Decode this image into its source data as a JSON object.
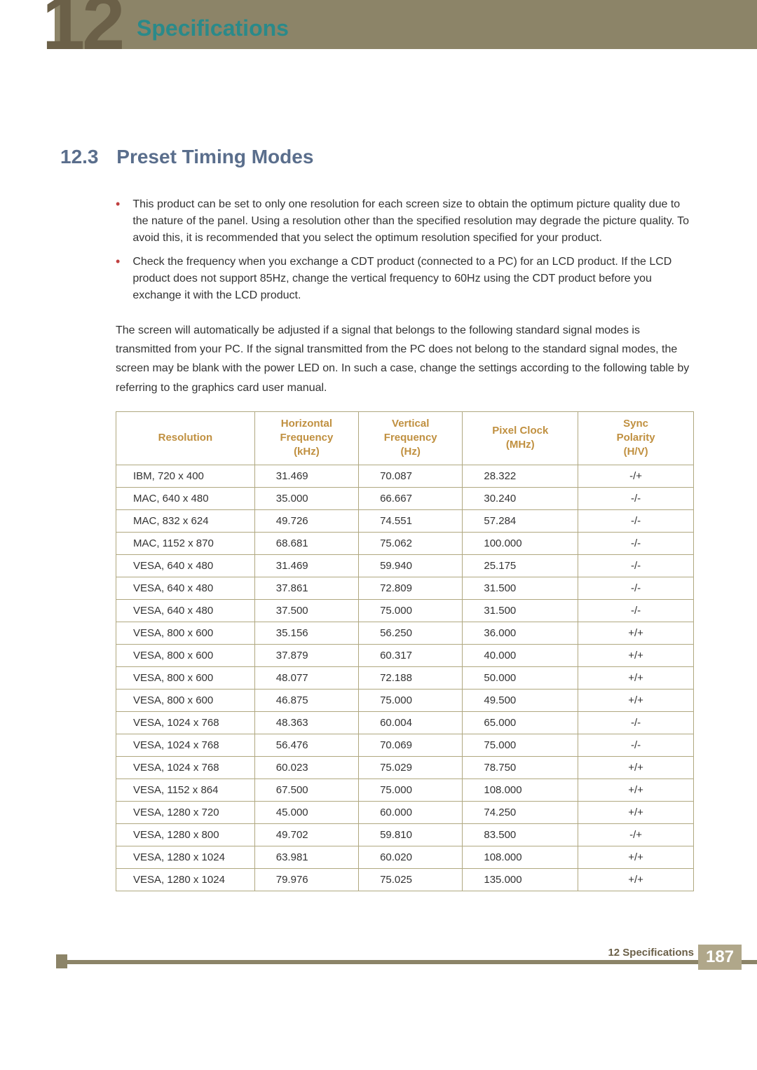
{
  "banner": {
    "chapter_number": "12",
    "chapter_title": "Specifications"
  },
  "section": {
    "number": "12.3",
    "title": "Preset Timing Modes"
  },
  "bullets": [
    "This product can be set to only one resolution for each screen size to obtain the optimum picture quality due to the nature of the panel. Using a resolution other than the specified resolution may degrade the picture quality. To avoid this, it is recommended that you select the optimum resolution specified for your product.",
    "Check the frequency when you exchange a CDT product (connected to a PC) for an LCD product. If the LCD product does not support 85Hz, change the vertical frequency to 60Hz using the CDT product before you exchange it with the LCD product."
  ],
  "intro": "The screen will automatically be adjusted if a signal that belongs to the following standard signal modes is transmitted from your PC. If the signal transmitted from the PC does not belong to the standard signal modes, the screen may be blank with the power LED on. In such a case, change the settings according to the following table by referring to the graphics card user manual.",
  "table": {
    "headers": {
      "resolution": "Resolution",
      "hfreq_l1": "Horizontal",
      "hfreq_l2": "Frequency",
      "hfreq_l3": "(kHz)",
      "vfreq_l1": "Vertical",
      "vfreq_l2": "Frequency",
      "vfreq_l3": "(Hz)",
      "pclk_l1": "Pixel Clock",
      "pclk_l2": "(MHz)",
      "pol_l1": "Sync",
      "pol_l2": "Polarity",
      "pol_l3": "(H/V)"
    },
    "rows": [
      {
        "res": "IBM, 720 x 400",
        "hf": "31.469",
        "vf": "70.087",
        "pc": "28.322",
        "pol": "-/+"
      },
      {
        "res": "MAC, 640 x 480",
        "hf": "35.000",
        "vf": "66.667",
        "pc": "30.240",
        "pol": "-/-"
      },
      {
        "res": "MAC, 832 x 624",
        "hf": "49.726",
        "vf": "74.551",
        "pc": "57.284",
        "pol": "-/-"
      },
      {
        "res": "MAC, 1152 x 870",
        "hf": "68.681",
        "vf": "75.062",
        "pc": "100.000",
        "pol": "-/-"
      },
      {
        "res": "VESA, 640 x 480",
        "hf": "31.469",
        "vf": "59.940",
        "pc": "25.175",
        "pol": "-/-"
      },
      {
        "res": "VESA, 640 x 480",
        "hf": "37.861",
        "vf": "72.809",
        "pc": "31.500",
        "pol": "-/-"
      },
      {
        "res": "VESA, 640 x 480",
        "hf": "37.500",
        "vf": "75.000",
        "pc": "31.500",
        "pol": "-/-"
      },
      {
        "res": "VESA, 800 x 600",
        "hf": "35.156",
        "vf": "56.250",
        "pc": "36.000",
        "pol": "+/+"
      },
      {
        "res": "VESA, 800 x 600",
        "hf": "37.879",
        "vf": "60.317",
        "pc": "40.000",
        "pol": "+/+"
      },
      {
        "res": "VESA, 800 x 600",
        "hf": "48.077",
        "vf": "72.188",
        "pc": "50.000",
        "pol": "+/+"
      },
      {
        "res": "VESA, 800 x 600",
        "hf": "46.875",
        "vf": "75.000",
        "pc": "49.500",
        "pol": "+/+"
      },
      {
        "res": "VESA, 1024 x 768",
        "hf": "48.363",
        "vf": "60.004",
        "pc": "65.000",
        "pol": "-/-"
      },
      {
        "res": "VESA, 1024 x 768",
        "hf": "56.476",
        "vf": "70.069",
        "pc": "75.000",
        "pol": "-/-"
      },
      {
        "res": "VESA, 1024 x 768",
        "hf": "60.023",
        "vf": "75.029",
        "pc": "78.750",
        "pol": "+/+"
      },
      {
        "res": "VESA, 1152 x 864",
        "hf": "67.500",
        "vf": "75.000",
        "pc": "108.000",
        "pol": "+/+"
      },
      {
        "res": "VESA, 1280 x 720",
        "hf": "45.000",
        "vf": "60.000",
        "pc": "74.250",
        "pol": "+/+"
      },
      {
        "res": "VESA, 1280 x 800",
        "hf": "49.702",
        "vf": "59.810",
        "pc": "83.500",
        "pol": "-/+"
      },
      {
        "res": "VESA, 1280 x 1024",
        "hf": "63.981",
        "vf": "60.020",
        "pc": "108.000",
        "pol": "+/+"
      },
      {
        "res": "VESA, 1280 x 1024",
        "hf": "79.976",
        "vf": "75.025",
        "pc": "135.000",
        "pol": "+/+"
      }
    ]
  },
  "footer": {
    "label": "12 Specifications",
    "page": "187"
  },
  "colors": {
    "accent_teal": "#2a8a8a",
    "heading_purple": "#5a6e8c",
    "header_olive": "#8c8468",
    "brown_dark": "#6b6048",
    "table_border": "#b0a880",
    "table_header_text": "#c09040",
    "bullet_dot": "#c04040",
    "white": "#ffffff"
  }
}
